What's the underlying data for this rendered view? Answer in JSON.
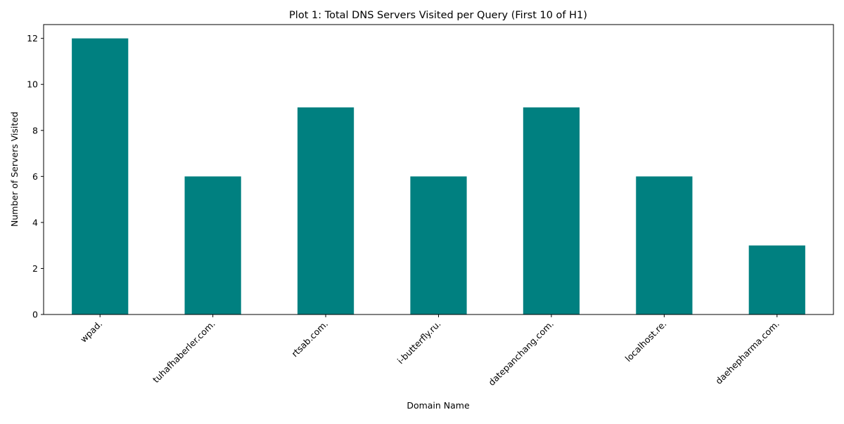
{
  "chart_data": {
    "type": "bar",
    "title": "Plot 1: Total DNS Servers Visited per Query (First 10 of H1)",
    "xlabel": "Domain Name",
    "ylabel": "Number of Servers Visited",
    "categories": [
      "wpad.",
      "tuhafhaberler.com.",
      "rtsab.com.",
      "i-butterfly.ru.",
      "datepanchang.com.",
      "localhost.re.",
      "daehepharma.com."
    ],
    "values": [
      12,
      6,
      9,
      6,
      9,
      6,
      3
    ],
    "ylim": [
      0,
      12.6
    ],
    "yticks": [
      0,
      2,
      4,
      6,
      8,
      10,
      12
    ],
    "grid": false,
    "legend": "none",
    "bar_color": "#008080",
    "x_tick_rotation": -45
  }
}
